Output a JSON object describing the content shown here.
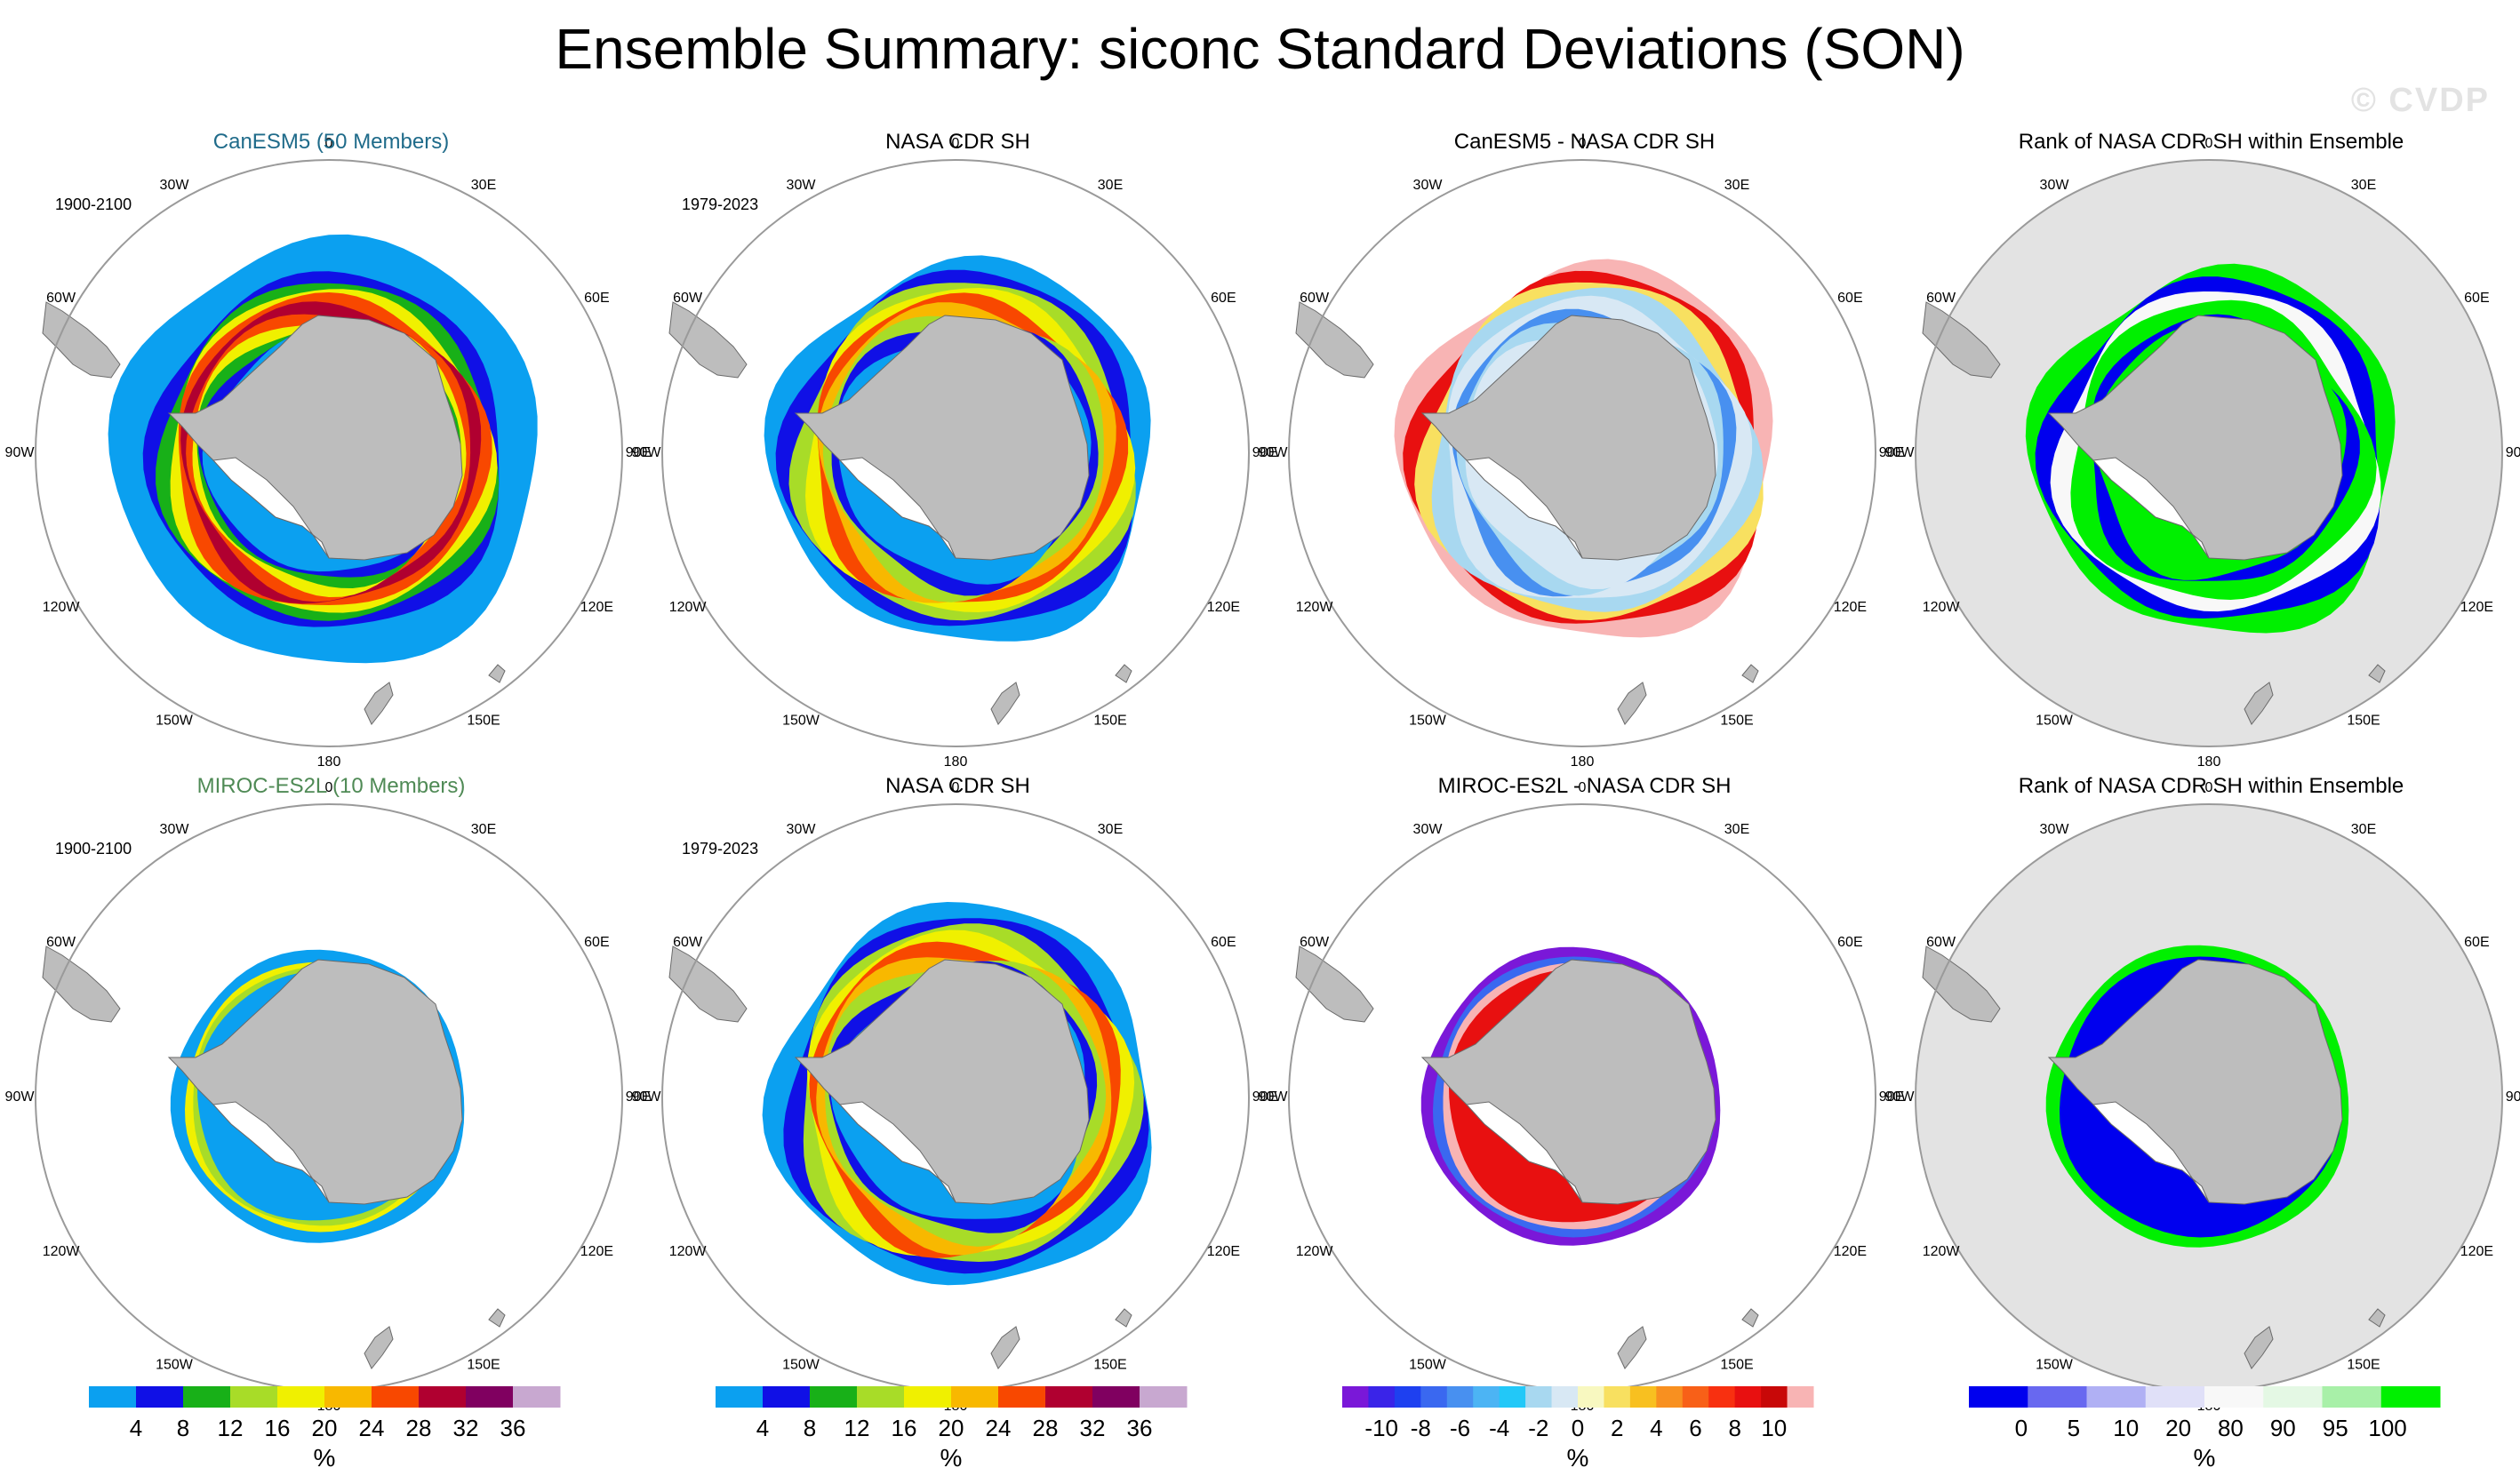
{
  "title": "Ensemble Summary: siconc Standard Deviations (SON)",
  "watermark": "© CVDP",
  "longitude_labels": [
    "0",
    "30E",
    "60E",
    "90E",
    "120E",
    "150E",
    "180",
    "150W",
    "120W",
    "90W",
    "60W",
    "30W"
  ],
  "colors": {
    "land": "#bdbdbd",
    "rank_background": "#e3e3e3",
    "title_canesm5": "#1f6b8a",
    "title_miroc": "#4f8a55"
  },
  "rows": [
    {
      "panels": [
        {
          "title": "CanESM5 (50 Members)",
          "period": "1900-2100",
          "kind": "std",
          "field": "canesm5",
          "title_color_key": "title_canesm5"
        },
        {
          "title": "NASA CDR SH",
          "period": "1979-2023",
          "kind": "std",
          "field": "obs"
        },
        {
          "title": "CanESM5 - NASA CDR SH",
          "period": "",
          "kind": "diff",
          "field": "diff_canesm5"
        },
        {
          "title": "Rank of NASA CDR SH within Ensemble",
          "period": "",
          "kind": "rank",
          "field": "rank_canesm5"
        }
      ]
    },
    {
      "panels": [
        {
          "title": "MIROC-ES2L (10 Members)",
          "period": "1900-2100",
          "kind": "std",
          "field": "miroc",
          "title_color_key": "title_miroc"
        },
        {
          "title": "NASA CDR SH",
          "period": "1979-2023",
          "kind": "std",
          "field": "obs"
        },
        {
          "title": "MIROC-ES2L - NASA CDR SH",
          "period": "",
          "kind": "diff",
          "field": "diff_miroc"
        },
        {
          "title": "Rank of NASA CDR SH within Ensemble",
          "period": "",
          "kind": "rank",
          "field": "rank_miroc"
        }
      ]
    }
  ],
  "colorbars": [
    {
      "name": "std-colorbar-1",
      "units": "%",
      "colors": [
        "#0ba0f0",
        "#1010e6",
        "#18b018",
        "#a8dc28",
        "#f0f000",
        "#f8b800",
        "#f84800",
        "#b00030",
        "#800060",
        "#c8a8d0"
      ],
      "labels": [
        "4",
        "8",
        "12",
        "16",
        "20",
        "24",
        "28",
        "32",
        "36"
      ]
    },
    {
      "name": "std-colorbar-2",
      "units": "%",
      "colors": [
        "#0ba0f0",
        "#1010e6",
        "#18b018",
        "#a8dc28",
        "#f0f000",
        "#f8b800",
        "#f84800",
        "#b00030",
        "#800060",
        "#c8a8d0"
      ],
      "labels": [
        "4",
        "8",
        "12",
        "16",
        "20",
        "24",
        "28",
        "32",
        "36"
      ]
    },
    {
      "name": "diff-colorbar",
      "units": "%",
      "colors": [
        "#7a18d8",
        "#3a24e8",
        "#1e40f0",
        "#3a68f0",
        "#4890f0",
        "#4cb4f4",
        "#22c8f8",
        "#a8d8f0",
        "#d8e8f4",
        "#f8f8c0",
        "#f8e060",
        "#f8c020",
        "#f89020",
        "#f86018",
        "#f83010",
        "#e81010",
        "#c80808",
        "#f8b4b4"
      ],
      "labels": [
        "-10",
        "-8",
        "-6",
        "-4",
        "-2",
        "0",
        "2",
        "4",
        "6",
        "8",
        "10"
      ]
    },
    {
      "name": "rank-colorbar",
      "units": "%",
      "colors": [
        "#0000ee",
        "#6868f0",
        "#b0b0f4",
        "#e0e0f8",
        "#f8f8f8",
        "#e4f8e4",
        "#a8f0a8",
        "#00f000"
      ],
      "labels": [
        "0",
        "5",
        "10",
        "20",
        "80",
        "90",
        "95",
        "100"
      ]
    }
  ]
}
